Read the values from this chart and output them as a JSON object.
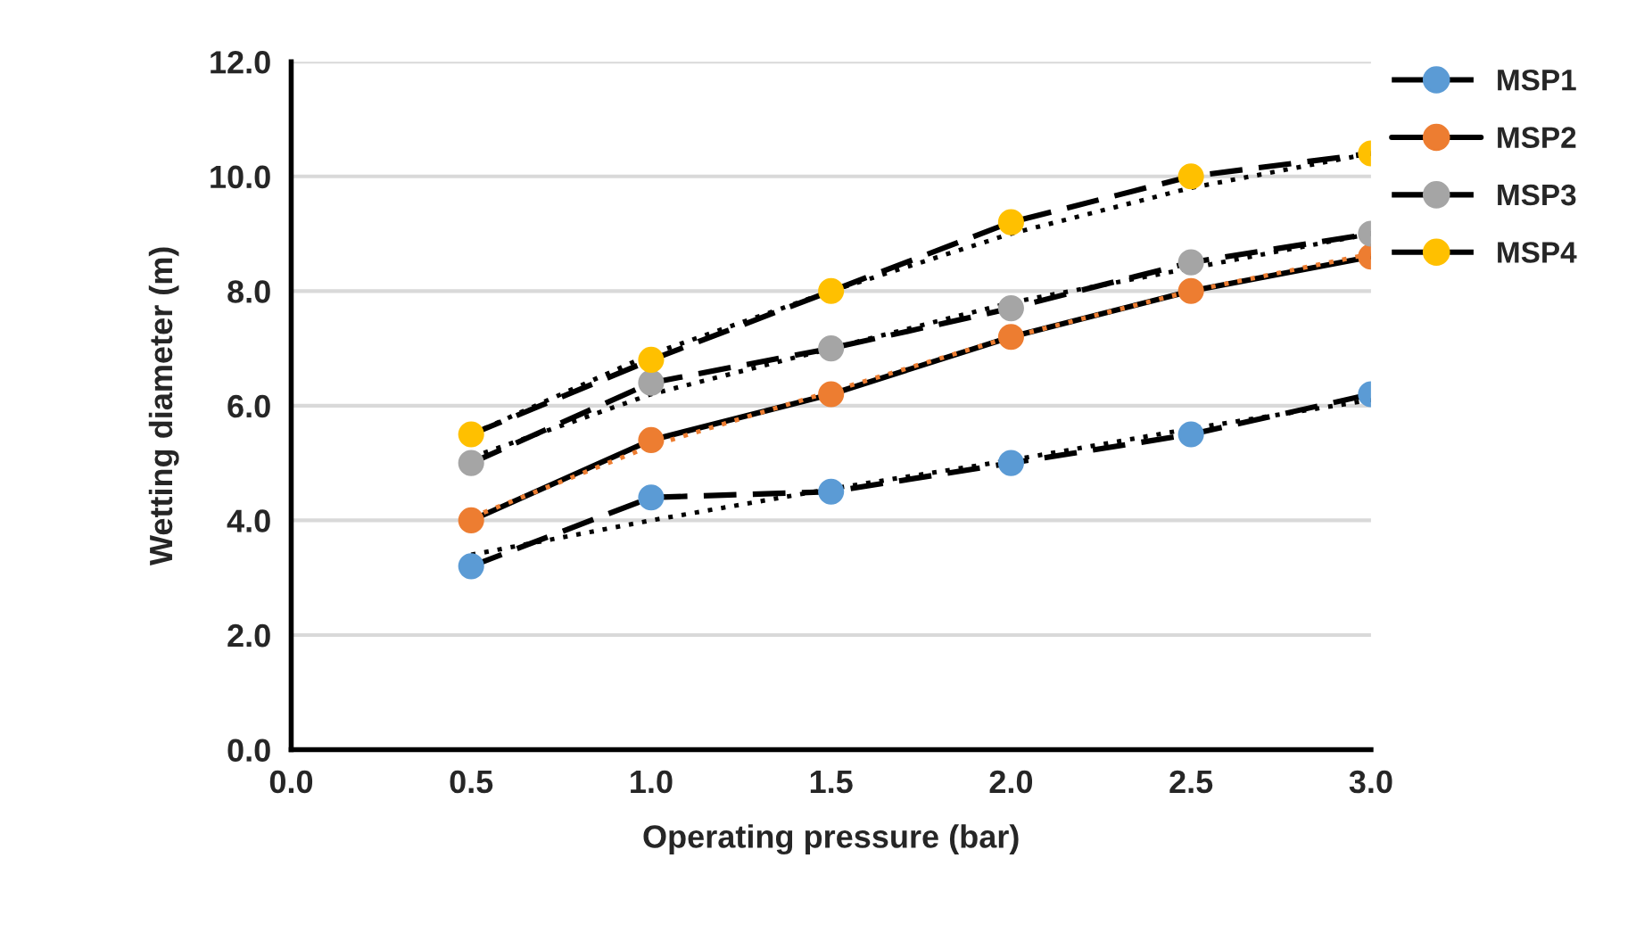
{
  "chart_data": {
    "type": "line",
    "xlabel": "Operating pressure (bar)",
    "ylabel": "Wetting diameter (m)",
    "x": [
      0.5,
      1.0,
      1.5,
      2.0,
      2.5,
      3.0
    ],
    "series": [
      {
        "name": "MSP1",
        "color": "#5b9bd5",
        "line_style": "dashed",
        "marker": "circle",
        "values": [
          3.2,
          4.4,
          4.5,
          5.0,
          5.5,
          6.2
        ]
      },
      {
        "name": "MSP2",
        "color": "#ed7d31",
        "line_style": "solid",
        "marker": "circle",
        "values": [
          4.0,
          5.4,
          6.2,
          7.2,
          8.0,
          8.6
        ]
      },
      {
        "name": "MSP3",
        "color": "#a5a5a5",
        "line_style": "dashed",
        "marker": "circle",
        "values": [
          5.0,
          6.4,
          7.0,
          7.7,
          8.5,
          9.0
        ]
      },
      {
        "name": "MSP4",
        "color": "#ffc000",
        "line_style": "dashed",
        "marker": "circle",
        "values": [
          5.5,
          6.8,
          8.0,
          9.2,
          10.0,
          10.4
        ]
      },
      {
        "color": "#000000",
        "line_style": "dotted",
        "marker": "none",
        "values": [
          3.4,
          4.0,
          4.55,
          5.05,
          5.6,
          6.1
        ]
      },
      {
        "color": "#ed7d31",
        "line_style": "dotted",
        "marker": "none",
        "values": [
          4.05,
          5.3,
          6.25,
          7.2,
          8.0,
          8.65
        ]
      },
      {
        "color": "#000000",
        "line_style": "dotted",
        "marker": "none",
        "values": [
          5.1,
          6.2,
          7.0,
          7.8,
          8.4,
          9.0
        ]
      },
      {
        "color": "#000000",
        "line_style": "dotted",
        "marker": "none",
        "values": [
          5.5,
          6.9,
          8.0,
          9.0,
          9.8,
          10.4
        ]
      }
    ],
    "xlim": [
      0.0,
      3.0
    ],
    "xticks": [
      {
        "value": 0.0,
        "label": "0.0"
      },
      {
        "value": 0.5,
        "label": "0.5"
      },
      {
        "value": 1.0,
        "label": "1.0"
      },
      {
        "value": 1.5,
        "label": "1.5"
      },
      {
        "value": 2.0,
        "label": "2.0"
      },
      {
        "value": 2.5,
        "label": "2.5"
      },
      {
        "value": 3.0,
        "label": "3.0"
      }
    ],
    "ylim": [
      0.0,
      12.0
    ],
    "yticks": [
      {
        "value": 0.0,
        "label": "0.0"
      },
      {
        "value": 2.0,
        "label": "2.0"
      },
      {
        "value": 4.0,
        "label": "4.0"
      },
      {
        "value": 6.0,
        "label": "6.0"
      },
      {
        "value": 8.0,
        "label": "8.0"
      },
      {
        "value": 10.0,
        "label": "10.0"
      },
      {
        "value": 12.0,
        "label": "12.0"
      }
    ],
    "grid": "y",
    "legend": "top right"
  }
}
